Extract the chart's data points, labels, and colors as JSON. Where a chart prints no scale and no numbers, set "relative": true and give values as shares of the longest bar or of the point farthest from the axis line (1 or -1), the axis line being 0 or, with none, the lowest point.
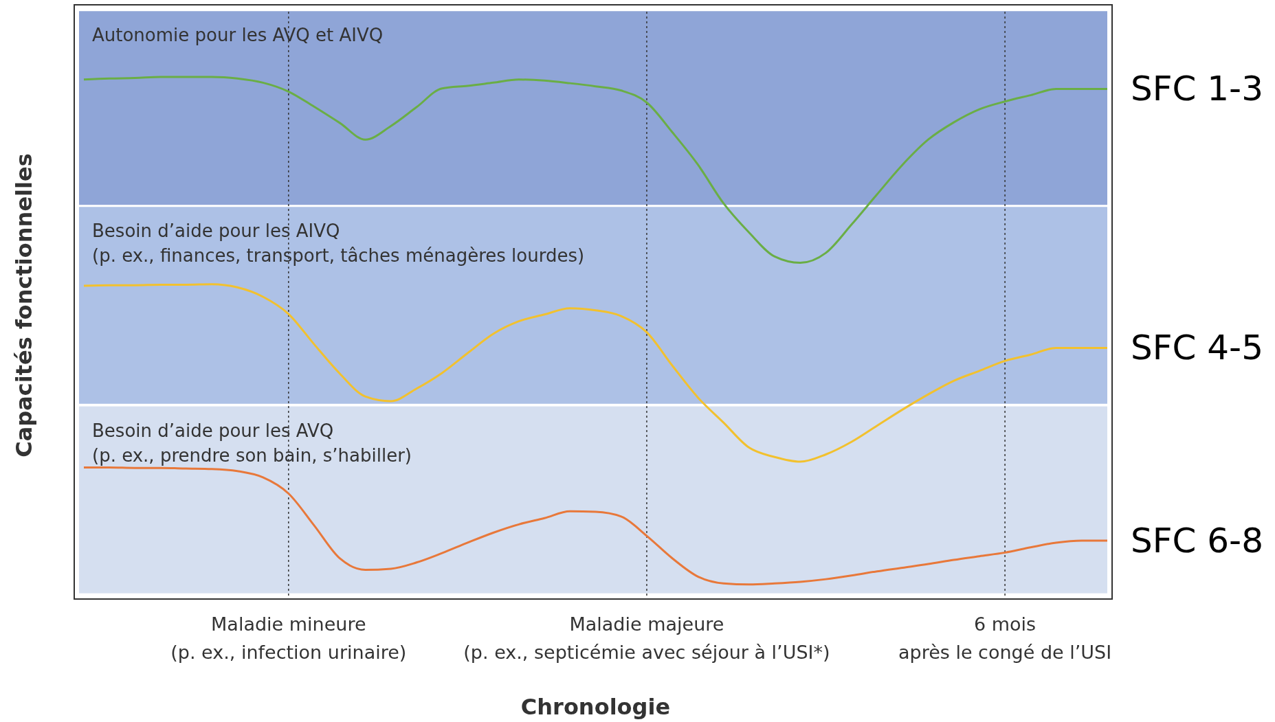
{
  "chart_data": {
    "type": "line",
    "relative": true,
    "xlabel": "Chronologie",
    "ylabel": "Capacités fonctionnelles",
    "categories": [
      null,
      null,
      null,
      null,
      null,
      null,
      null,
      null,
      "Maladie mineure\n(p. ex., infection urinaire)",
      null,
      null,
      null,
      null,
      null,
      null,
      null,
      null,
      null,
      null,
      null,
      null,
      null,
      "Maladie majeure\n(p. ex., septicémie avec séjour à l’USI*)",
      null,
      null,
      null,
      null,
      null,
      null,
      null,
      null,
      null,
      null,
      null,
      null,
      null,
      "6 mois\naprès le congé de l’USI",
      null,
      null,
      null,
      null
    ],
    "grid": "x",
    "tick_labels": "x",
    "bands": [
      {
        "axis": "y",
        "from": 0.755,
        "to": 1.126,
        "label": "Autonomie pour les AVQ et AIVQ",
        "color": "#8fa5d7"
      },
      {
        "axis": "y",
        "from": 0.374,
        "to": 0.751,
        "label": "Besoin d’aide pour les AIVQ\n(p. ex., finances, transport, tâches ménagères lourdes)",
        "color": "#adc1e6"
      },
      {
        "axis": "y",
        "from": 0.011,
        "to": 0.369,
        "label": "Besoin d’aide pour les AVQ\n(p. ex., prendre son bain, s’habiller)",
        "color": "#d5dff0"
      }
    ],
    "series": [
      {
        "name": "SFC 1-3",
        "color": "#6aae45",
        "values": [
          0.995,
          0.997,
          0.998,
          1,
          1,
          1,
          0.997,
          0.989,
          0.972,
          0.943,
          0.912,
          0.88,
          0.906,
          0.942,
          0.978,
          0.983,
          0.989,
          0.995,
          0.993,
          0.988,
          0.982,
          0.974,
          0.951,
          0.894,
          0.832,
          0.758,
          0.702,
          0.656,
          0.644,
          0.663,
          0.717,
          0.775,
          0.832,
          0.88,
          0.913,
          0.938,
          0.953,
          0.965,
          0.977,
          0.977,
          0.977
        ]
      },
      {
        "name": "SFC 4-5",
        "color": "#f2c12e",
        "values": [
          0.6,
          0.601,
          0.601,
          0.602,
          0.602,
          0.603,
          0.597,
          0.579,
          0.546,
          0.488,
          0.432,
          0.388,
          0.379,
          0.403,
          0.433,
          0.471,
          0.508,
          0.532,
          0.545,
          0.557,
          0.553,
          0.542,
          0.511,
          0.447,
          0.386,
          0.338,
          0.29,
          0.272,
          0.263,
          0.277,
          0.301,
          0.332,
          0.363,
          0.392,
          0.418,
          0.437,
          0.456,
          0.468,
          0.481,
          0.481,
          0.481
        ]
      },
      {
        "name": "SFC 6-8",
        "color": "#e8783a",
        "values": [
          0.252,
          0.252,
          0.251,
          0.251,
          0.25,
          0.249,
          0.245,
          0.233,
          0.202,
          0.141,
          0.078,
          0.056,
          0.058,
          0.07,
          0.088,
          0.108,
          0.127,
          0.143,
          0.155,
          0.168,
          0.167,
          0.158,
          0.121,
          0.078,
          0.043,
          0.03,
          0.028,
          0.03,
          0.033,
          0.038,
          0.045,
          0.053,
          0.06,
          0.067,
          0.075,
          0.082,
          0.089,
          0.099,
          0.108,
          0.112,
          0.112
        ]
      }
    ]
  }
}
